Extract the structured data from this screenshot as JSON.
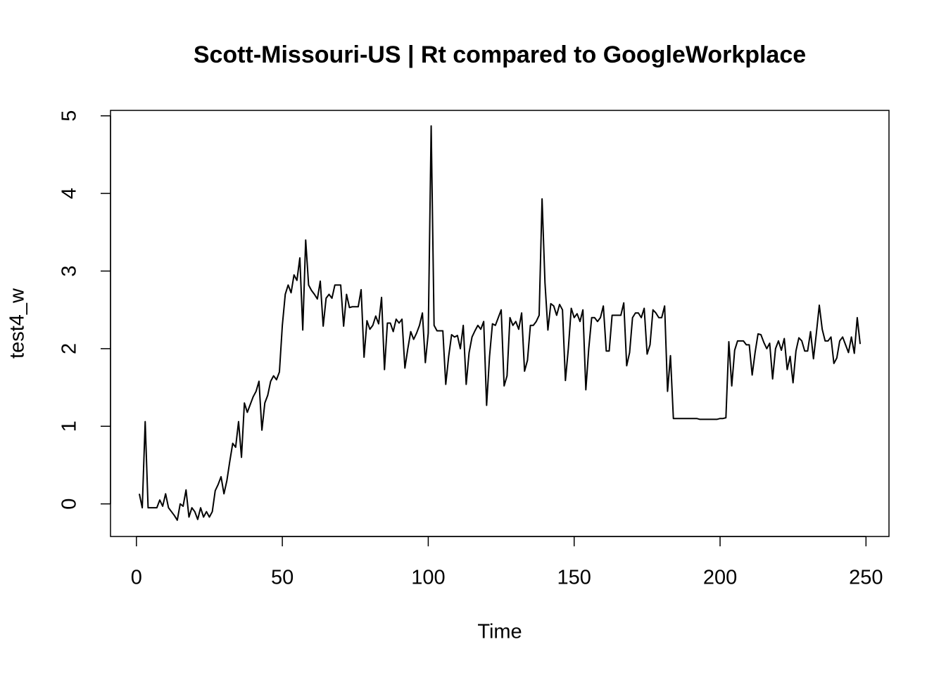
{
  "chart_data": {
    "type": "line",
    "title": "Scott-Missouri-US | Rt compared to GoogleWorkplace",
    "x_label": "Time",
    "y_label": "test4_w",
    "color": "#000000",
    "xlim": [
      -8.88,
      257.88
    ],
    "ylim": [
      -0.42,
      5.07
    ],
    "xticks": [
      0,
      50,
      100,
      150,
      200,
      250
    ],
    "yticks": [
      0,
      1,
      2,
      3,
      4,
      5
    ],
    "x": [
      1,
      2,
      3,
      4,
      5,
      6,
      7,
      8,
      9,
      10,
      11,
      12,
      13,
      14,
      15,
      16,
      17,
      18,
      19,
      20,
      21,
      22,
      23,
      24,
      25,
      26,
      27,
      28,
      29,
      30,
      31,
      32,
      33,
      34,
      35,
      36,
      37,
      38,
      39,
      40,
      41,
      42,
      43,
      44,
      45,
      46,
      47,
      48,
      49,
      50,
      51,
      52,
      53,
      54,
      55,
      56,
      57,
      58,
      59,
      60,
      61,
      62,
      63,
      64,
      65,
      66,
      67,
      68,
      69,
      70,
      71,
      72,
      73,
      74,
      75,
      76,
      77,
      78,
      79,
      80,
      81,
      82,
      83,
      84,
      85,
      86,
      87,
      88,
      89,
      90,
      91,
      92,
      93,
      94,
      95,
      96,
      97,
      98,
      99,
      100,
      101,
      102,
      103,
      104,
      105,
      106,
      107,
      108,
      109,
      110,
      111,
      112,
      113,
      114,
      115,
      116,
      117,
      118,
      119,
      120,
      121,
      122,
      123,
      124,
      125,
      126,
      127,
      128,
      129,
      130,
      131,
      132,
      133,
      134,
      135,
      136,
      137,
      138,
      139,
      140,
      141,
      142,
      143,
      144,
      145,
      146,
      147,
      148,
      149,
      150,
      151,
      152,
      153,
      154,
      155,
      156,
      157,
      158,
      159,
      160,
      161,
      162,
      163,
      164,
      165,
      166,
      167,
      168,
      169,
      170,
      171,
      172,
      173,
      174,
      175,
      176,
      177,
      178,
      179,
      180,
      181,
      182,
      183,
      184,
      185,
      186,
      187,
      188,
      189,
      190,
      191,
      192,
      193,
      194,
      195,
      196,
      197,
      198,
      199,
      200,
      201,
      202,
      203,
      204,
      205,
      206,
      207,
      208,
      209,
      210,
      211,
      212,
      213,
      214,
      215,
      216,
      217,
      218,
      219,
      220,
      221,
      222,
      223,
      224,
      225,
      226,
      227,
      228,
      229,
      230,
      231,
      232,
      233,
      234,
      235,
      236,
      237,
      238,
      239,
      240,
      241,
      242,
      243,
      244,
      245,
      246,
      247,
      248
    ],
    "values": [
      0.13,
      -0.05,
      1.06,
      -0.05,
      -0.05,
      -0.05,
      -0.05,
      0.05,
      -0.03,
      0.13,
      -0.05,
      -0.1,
      -0.15,
      -0.21,
      0.0,
      -0.03,
      0.18,
      -0.17,
      -0.05,
      -0.1,
      -0.2,
      -0.05,
      -0.17,
      -0.1,
      -0.17,
      -0.1,
      0.17,
      0.25,
      0.35,
      0.13,
      0.3,
      0.55,
      0.78,
      0.73,
      1.06,
      0.6,
      1.3,
      1.18,
      1.28,
      1.38,
      1.45,
      1.58,
      0.95,
      1.3,
      1.4,
      1.58,
      1.65,
      1.6,
      1.7,
      2.3,
      2.7,
      2.82,
      2.72,
      2.95,
      2.88,
      3.17,
      2.24,
      3.4,
      2.82,
      2.75,
      2.7,
      2.64,
      2.87,
      2.29,
      2.65,
      2.7,
      2.65,
      2.82,
      2.82,
      2.82,
      2.29,
      2.7,
      2.53,
      2.54,
      2.54,
      2.54,
      2.76,
      1.89,
      2.36,
      2.25,
      2.3,
      2.42,
      2.32,
      2.66,
      1.73,
      2.33,
      2.33,
      2.22,
      2.38,
      2.33,
      2.38,
      1.75,
      2.0,
      2.22,
      2.12,
      2.2,
      2.3,
      2.46,
      1.82,
      2.2,
      4.87,
      2.3,
      2.23,
      2.23,
      2.23,
      1.54,
      1.9,
      2.18,
      2.15,
      2.17,
      2.0,
      2.3,
      1.54,
      1.95,
      2.15,
      2.23,
      2.3,
      2.25,
      2.35,
      1.27,
      1.9,
      2.32,
      2.3,
      2.4,
      2.5,
      1.52,
      1.65,
      2.4,
      2.3,
      2.35,
      2.25,
      2.46,
      1.71,
      1.85,
      2.3,
      2.3,
      2.35,
      2.43,
      3.93,
      2.85,
      2.24,
      2.58,
      2.55,
      2.43,
      2.57,
      2.5,
      1.59,
      2.0,
      2.52,
      2.4,
      2.45,
      2.35,
      2.5,
      1.47,
      2.0,
      2.4,
      2.4,
      2.35,
      2.4,
      2.55,
      1.97,
      1.97,
      2.43,
      2.43,
      2.43,
      2.43,
      2.59,
      1.78,
      1.95,
      2.4,
      2.46,
      2.46,
      2.4,
      2.52,
      1.93,
      2.05,
      2.5,
      2.46,
      2.4,
      2.4,
      2.55,
      1.45,
      1.91,
      1.1,
      1.1,
      1.1,
      1.1,
      1.1,
      1.1,
      1.1,
      1.1,
      1.1,
      1.09,
      1.09,
      1.09,
      1.09,
      1.09,
      1.09,
      1.09,
      1.1,
      1.1,
      1.11,
      2.09,
      1.52,
      1.98,
      2.1,
      2.1,
      2.1,
      2.05,
      2.05,
      1.66,
      1.95,
      2.19,
      2.18,
      2.08,
      2.0,
      2.07,
      1.61,
      2.0,
      2.1,
      1.98,
      2.13,
      1.73,
      1.9,
      1.56,
      1.97,
      2.14,
      2.1,
      1.97,
      1.97,
      2.22,
      1.87,
      2.2,
      2.56,
      2.25,
      2.1,
      2.1,
      2.15,
      1.81,
      1.88,
      2.1,
      2.15,
      2.05,
      1.95,
      2.15,
      1.94,
      2.4,
      2.06
    ]
  }
}
